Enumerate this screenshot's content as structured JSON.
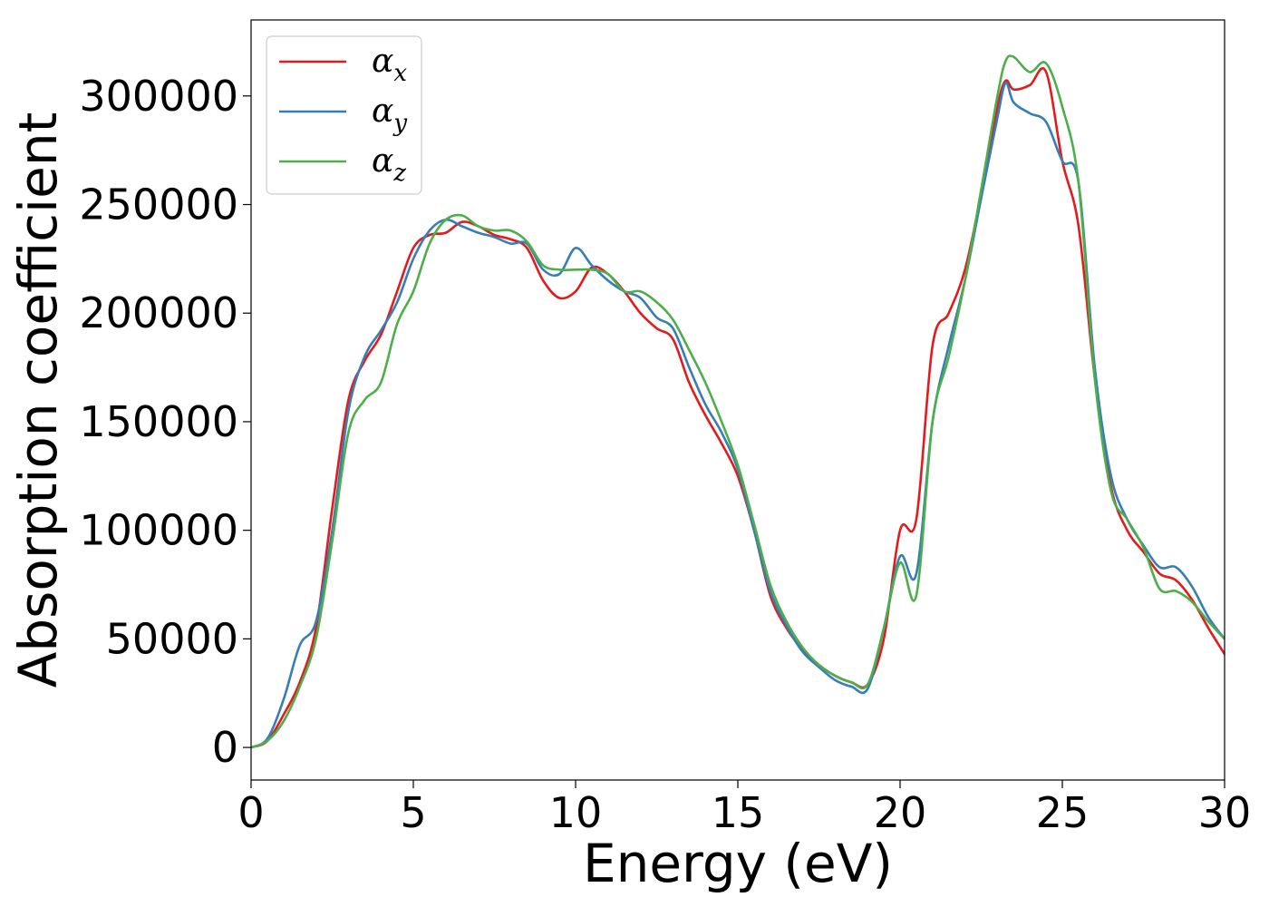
{
  "chart_data": {
    "type": "line",
    "title": "",
    "xlabel": "Energy (eV)",
    "ylabel": "Absorption coefficient",
    "xlim": [
      0,
      30
    ],
    "ylim": [
      -15000,
      335000
    ],
    "x_ticks": [
      "0",
      "5",
      "10",
      "15",
      "20",
      "25",
      "30"
    ],
    "y_ticks": [
      "0",
      "50000",
      "100000",
      "150000",
      "200000",
      "250000",
      "300000"
    ],
    "grid": false,
    "legend_position": "top-left",
    "x": [
      0,
      0.5,
      1,
      1.5,
      2,
      2.5,
      3,
      3.5,
      4,
      4.5,
      5,
      5.5,
      6,
      6.5,
      7,
      7.5,
      8,
      8.5,
      9,
      9.5,
      10,
      10.5,
      11,
      11.5,
      12,
      12.5,
      13,
      13.5,
      14,
      14.5,
      15,
      15.5,
      16,
      16.5,
      17,
      17.5,
      18,
      18.5,
      19,
      19.5,
      20,
      20.5,
      21,
      21.5,
      22,
      22.5,
      23,
      23.25,
      23.5,
      24,
      24.5,
      25,
      25.5,
      26,
      26.5,
      27,
      27.5,
      28,
      28.5,
      29,
      29.5,
      30
    ],
    "series": [
      {
        "name": "α",
        "subscript": "x",
        "color": "#e41a1c",
        "values": [
          0,
          3000,
          15000,
          30000,
          55000,
          110000,
          160000,
          178000,
          190000,
          210000,
          230000,
          236000,
          237000,
          242000,
          240000,
          236000,
          234000,
          230000,
          215000,
          207000,
          210000,
          221000,
          218000,
          210000,
          200000,
          193000,
          188000,
          168000,
          153000,
          140000,
          125000,
          100000,
          70000,
          55000,
          45000,
          38000,
          33000,
          30000,
          29000,
          50000,
          100000,
          105000,
          185000,
          200000,
          220000,
          255000,
          295000,
          307000,
          303000,
          305000,
          311000,
          270000,
          240000,
          170000,
          120000,
          100000,
          90000,
          80000,
          77000,
          68000,
          55000,
          43000
        ]
      },
      {
        "name": "α",
        "subscript": "y",
        "color": "#377eb8",
        "values": [
          0,
          4000,
          22000,
          47000,
          58000,
          100000,
          155000,
          180000,
          192000,
          205000,
          225000,
          238000,
          243000,
          240000,
          237000,
          235000,
          232000,
          232000,
          220000,
          218000,
          230000,
          222000,
          215000,
          210000,
          207000,
          198000,
          193000,
          175000,
          158000,
          145000,
          128000,
          100000,
          72000,
          56000,
          44000,
          37000,
          31000,
          28000,
          27000,
          55000,
          88000,
          80000,
          150000,
          185000,
          215000,
          253000,
          290000,
          306000,
          297000,
          292000,
          288000,
          270000,
          260000,
          175000,
          125000,
          105000,
          93000,
          83000,
          83000,
          74000,
          60000,
          50000
        ]
      },
      {
        "name": "α",
        "subscript": "z",
        "color": "#4daf4a",
        "values": [
          0,
          3000,
          12000,
          28000,
          50000,
          95000,
          145000,
          160000,
          168000,
          195000,
          210000,
          232000,
          243000,
          245000,
          240000,
          238000,
          238000,
          233000,
          222000,
          220000,
          220000,
          220000,
          218000,
          210000,
          210000,
          205000,
          197000,
          183000,
          168000,
          150000,
          130000,
          103000,
          75000,
          58000,
          46000,
          38000,
          33000,
          30000,
          29000,
          55000,
          85000,
          70000,
          150000,
          180000,
          215000,
          257000,
          300000,
          316000,
          318000,
          311000,
          315000,
          295000,
          260000,
          170000,
          118000,
          105000,
          92000,
          73000,
          72000,
          67000,
          58000,
          50000
        ]
      }
    ]
  }
}
